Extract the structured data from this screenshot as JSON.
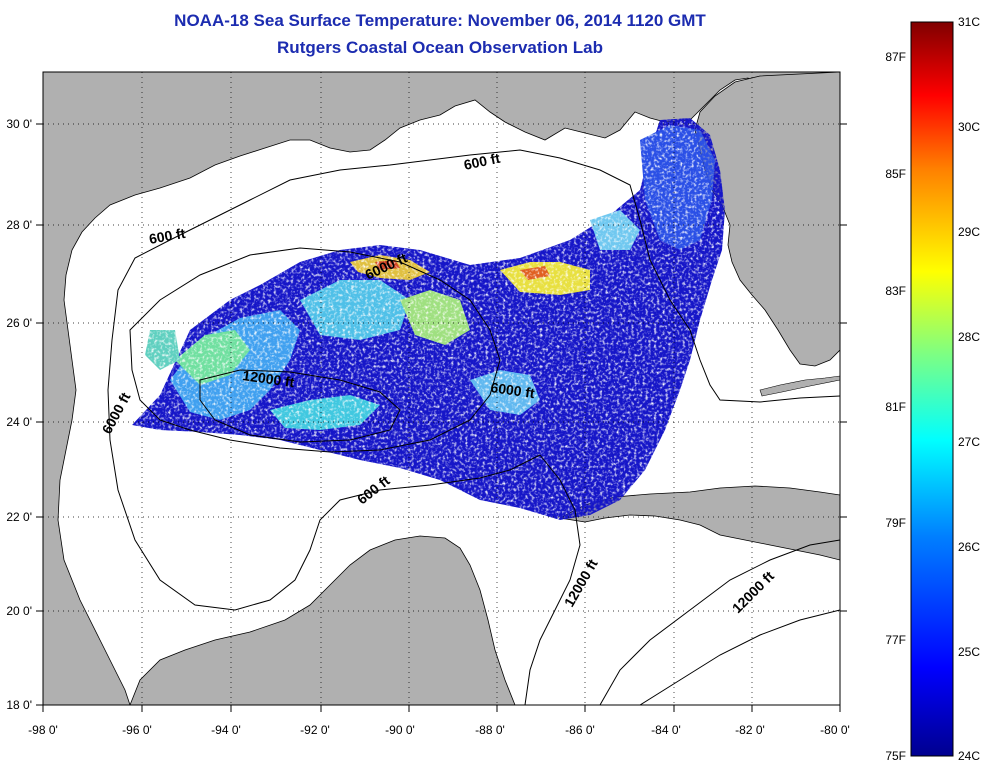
{
  "title": "NOAA-18 Sea Surface Temperature:  November 06, 2014 1120 GMT",
  "subtitle": "Rutgers Coastal Ocean Observation Lab",
  "map": {
    "lon_range": [
      -98,
      -80
    ],
    "lat_range": [
      18,
      31
    ],
    "lon_ticks": [
      "-98 0'",
      "-96 0'",
      "-94 0'",
      "-92 0'",
      "-90 0'",
      "-88 0'",
      "-86 0'",
      "-84 0'",
      "-82 0'",
      "-80 0'"
    ],
    "lat_ticks": [
      "18 0'",
      "20 0'",
      "22 0'",
      "24 0'",
      "26 0'",
      "28 0'",
      "30 0'"
    ],
    "grid": "dotted",
    "land_color": "#b0b0b0",
    "water_color": "#ffffff",
    "contour_labels": [
      "600 ft",
      "600 ft",
      "6000 ft",
      "6000 ft",
      "12000 ft",
      "6000 ft",
      "600 ft",
      "12000 ft",
      "12000 ft"
    ]
  },
  "colorbar": {
    "range_c": [
      24,
      31
    ],
    "range_f": [
      75,
      87
    ],
    "celsius_labels": [
      "31C",
      "30C",
      "29C",
      "28C",
      "27C",
      "26C",
      "25C",
      "24C"
    ],
    "fahrenheit_labels": [
      "87F",
      "85F",
      "83F",
      "81F",
      "79F",
      "77F",
      "75F"
    ],
    "colors": [
      "#00008f",
      "#0000ff",
      "#0080ff",
      "#00ffff",
      "#80ff80",
      "#ffff00",
      "#ff8000",
      "#ff0000",
      "#800000"
    ]
  }
}
